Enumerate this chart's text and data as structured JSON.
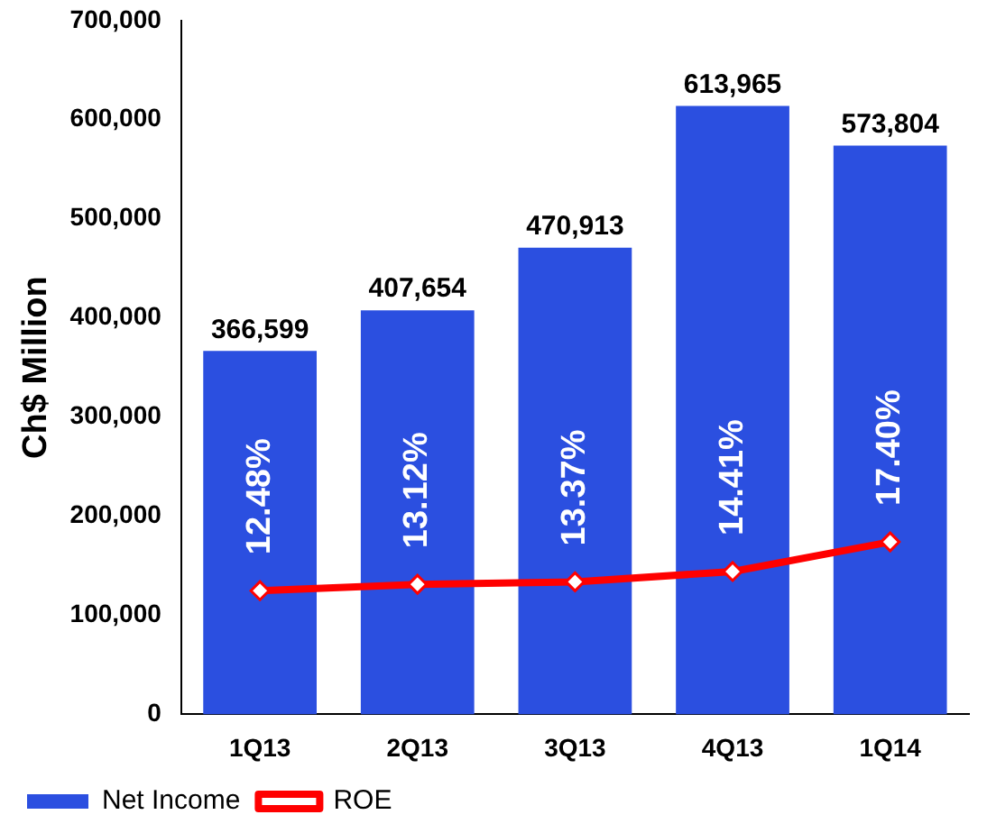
{
  "chart_data": {
    "type": "bar",
    "ylabel": "Ch$ Million",
    "categories": [
      "1Q13",
      "2Q13",
      "3Q13",
      "4Q13",
      "1Q14"
    ],
    "series": [
      {
        "name": "Net Income",
        "color": "#2b4fe0",
        "values": [
          366599,
          407654,
          470913,
          613965,
          573804
        ],
        "value_labels": [
          "366,599",
          "407,654",
          "470,913",
          "613,965",
          "573,804"
        ]
      },
      {
        "name": "ROE",
        "type": "line",
        "axis": "y2",
        "color": "#ff0000",
        "marker": "diamond",
        "values": [
          12.48,
          13.12,
          13.37,
          14.41,
          17.4
        ],
        "value_labels": [
          "12.48%",
          "13.12%",
          "13.37%",
          "14.41%",
          "17.40%"
        ]
      }
    ],
    "ylim": [
      0,
      700000
    ],
    "yticks": [
      0,
      {
        "value": 100000,
        "label": "100,000"
      },
      {
        "value": 200000,
        "label": "200,000"
      },
      {
        "value": 300000,
        "label": "300,000"
      },
      {
        "value": 400000,
        "label": "400,000"
      },
      {
        "value": 500000,
        "label": "500,000"
      },
      {
        "value": 600000,
        "label": "600,000"
      },
      {
        "value": 700000,
        "label": "700,000"
      }
    ],
    "y2lim": [
      0,
      70
    ],
    "grid": false,
    "legend": "bottom"
  }
}
